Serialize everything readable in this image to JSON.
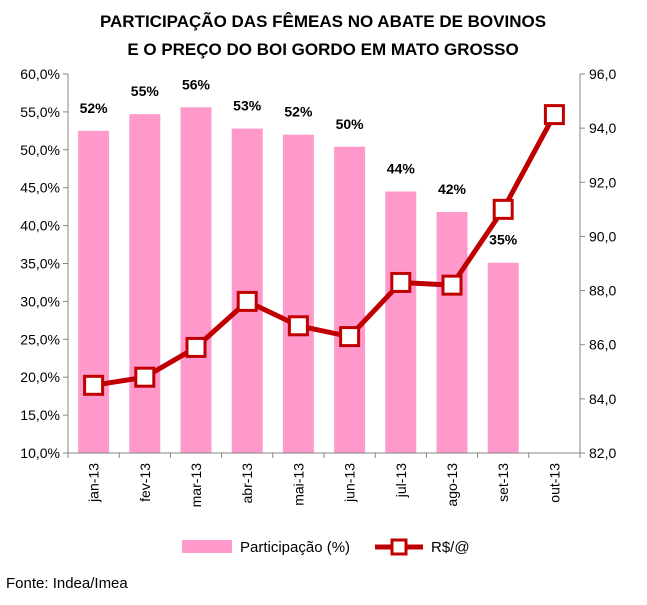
{
  "chart_data": {
    "type": "bar+line",
    "title_lines": [
      "PARTICIPAÇÃO DAS FÊMEAS NO ABATE DE BOVINOS",
      "E O PREÇO DO BOI GORDO EM MATO GROSSO"
    ],
    "categories": [
      "jan-13",
      "fev-13",
      "mar-13",
      "abr-13",
      "mai-13",
      "jun-13",
      "jul-13",
      "ago-13",
      "set-13",
      "out-13"
    ],
    "series": [
      {
        "name": "Participação (%)",
        "type": "bar",
        "axis": "left",
        "color": "#ff99cc",
        "values": [
          52.5,
          54.7,
          55.6,
          52.8,
          52.0,
          50.4,
          44.5,
          41.8,
          35.1,
          null
        ],
        "labels": [
          "52%",
          "55%",
          "56%",
          "53%",
          "52%",
          "50%",
          "44%",
          "42%",
          "35%",
          ""
        ]
      },
      {
        "name": "R$/@",
        "type": "line",
        "axis": "right",
        "color": "#c00000",
        "values": [
          84.5,
          84.8,
          85.9,
          87.6,
          86.7,
          86.3,
          88.3,
          88.2,
          91.0,
          94.5
        ]
      }
    ],
    "left_axis": {
      "min": 10,
      "max": 60,
      "step": 5,
      "tick_labels": [
        "10,0%",
        "15,0%",
        "20,0%",
        "25,0%",
        "30,0%",
        "35,0%",
        "40,0%",
        "45,0%",
        "50,0%",
        "55,0%",
        "60,0%"
      ]
    },
    "right_axis": {
      "min": 82,
      "max": 96,
      "step": 2,
      "tick_labels": [
        "82,0",
        "84,0",
        "86,0",
        "88,0",
        "90,0",
        "92,0",
        "94,0",
        "96,0"
      ]
    },
    "grid": false,
    "legend_position": "bottom"
  },
  "source": "Fonte: Indea/Imea"
}
